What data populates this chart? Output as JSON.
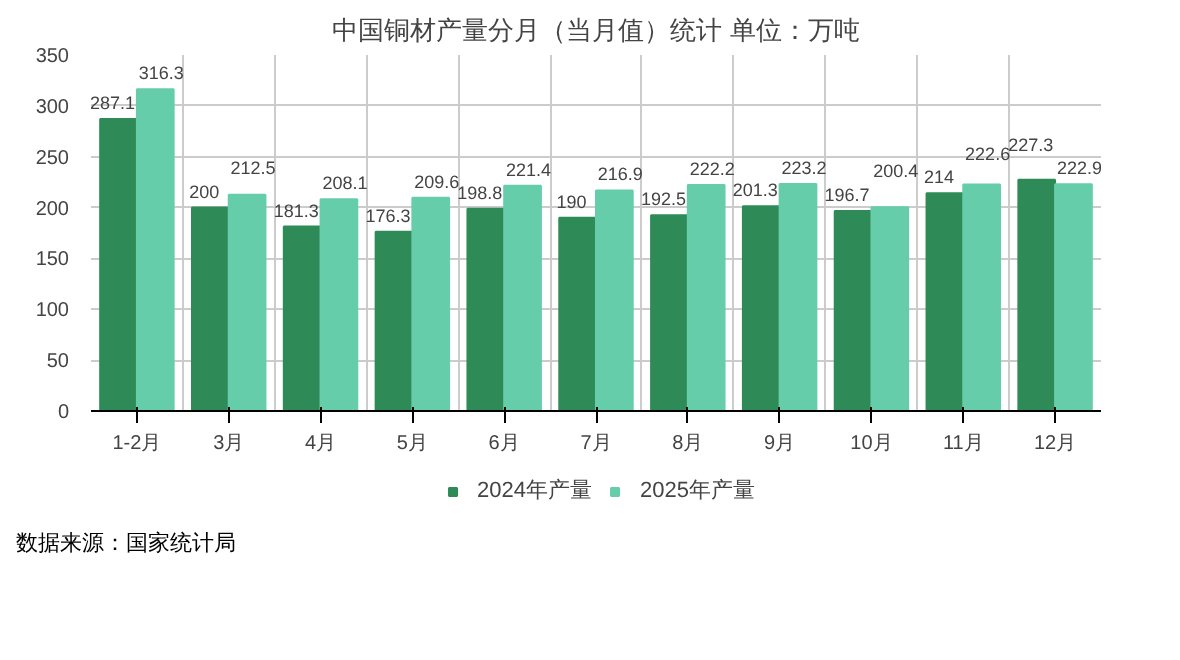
{
  "chart_data": {
    "type": "bar",
    "title": "中国铜材产量分月（当月值）统计 单位：万吨",
    "categories": [
      "1-2月",
      "3月",
      "4月",
      "5月",
      "6月",
      "7月",
      "8月",
      "9月",
      "10月",
      "11月",
      "12月"
    ],
    "series": [
      {
        "name": "2024年产量",
        "color": "#2e8b57",
        "values": [
          287.1,
          200,
          181.3,
          176.3,
          198.8,
          190,
          192.5,
          201.3,
          196.7,
          214,
          227.3
        ]
      },
      {
        "name": "2025年产量",
        "color": "#66cdaa",
        "values": [
          316.3,
          212.5,
          208.1,
          209.6,
          221.4,
          216.9,
          222.2,
          223.2,
          200.4,
          222.6,
          222.9
        ]
      }
    ],
    "ylim": [
      0,
      350
    ],
    "yticks": [
      0,
      50,
      100,
      150,
      200,
      250,
      300,
      350
    ],
    "grid": true,
    "legend": "bottom",
    "data_labels": true,
    "annotations": [
      "数据来源：国家统计局"
    ]
  }
}
